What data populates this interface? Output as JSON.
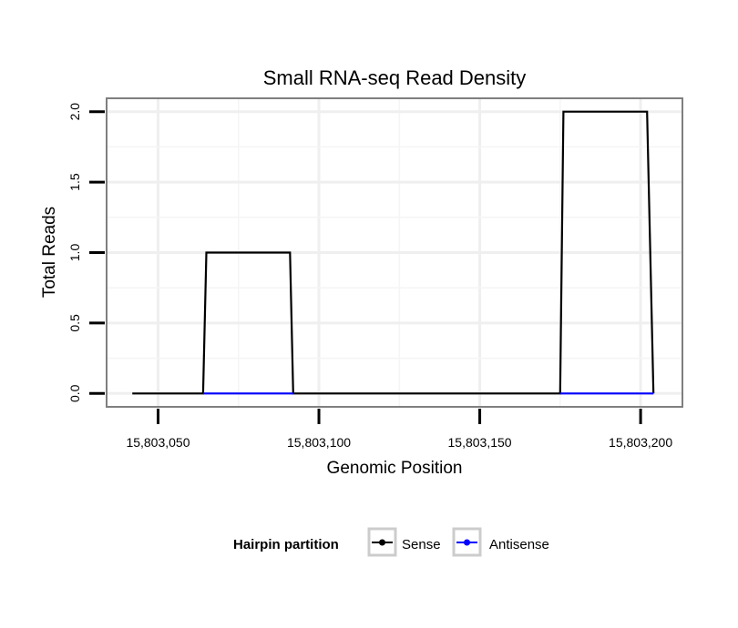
{
  "chart_data": {
    "type": "line",
    "title": "Small RNA-seq Read Density",
    "xlabel": "Genomic Position",
    "ylabel": "Total Reads",
    "xlim": [
      15803034,
      15803213
    ],
    "ylim": [
      -0.095,
      2.095
    ],
    "x_ticks": [
      15803050,
      15803100,
      15803150,
      15803200
    ],
    "x_tick_labels": [
      "15,803,050",
      "15,803,100",
      "15,803,150",
      "15,803,200"
    ],
    "y_ticks": [
      0.0,
      0.5,
      1.0,
      1.5,
      2.0
    ],
    "y_tick_labels": [
      "0.0",
      "0.5",
      "1.0",
      "1.5",
      "2.0"
    ],
    "grid": true,
    "legend": {
      "title": "Hairpin partition",
      "placement": "bottom"
    },
    "series": [
      {
        "name": "Sense",
        "color": "#000000",
        "x": [
          15803042,
          15803064,
          15803065,
          15803091,
          15803092,
          15803175,
          15803176,
          15803202,
          15803204
        ],
        "y": [
          0,
          0,
          1,
          1,
          0,
          0,
          2,
          2,
          0
        ]
      },
      {
        "name": "Antisense",
        "color": "#0000ff",
        "x": [
          15803064,
          15803092
        ],
        "y": [
          0,
          0
        ]
      },
      {
        "name": "Antisense",
        "color": "#0000ff",
        "x": [
          15803175,
          15803204
        ],
        "y": [
          0,
          0
        ]
      }
    ]
  }
}
